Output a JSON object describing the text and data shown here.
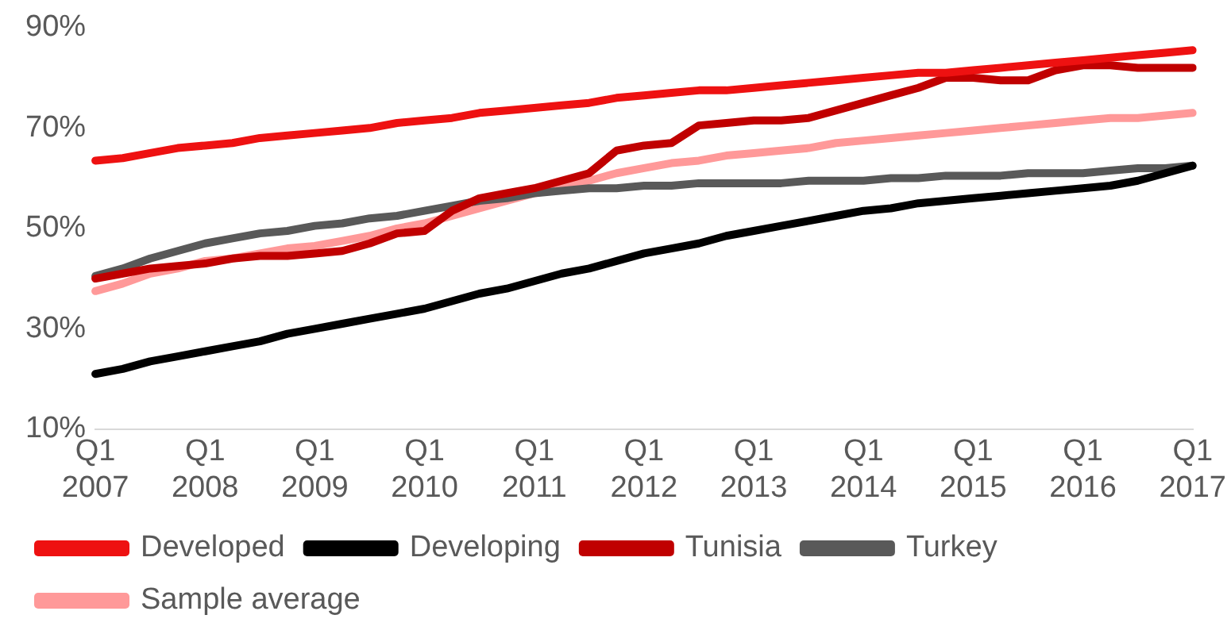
{
  "chart_data": {
    "type": "line",
    "categories": [
      "Q1 2007",
      null,
      null,
      null,
      "Q1 2008",
      null,
      null,
      null,
      "Q1 2009",
      null,
      null,
      null,
      "Q1 2010",
      null,
      null,
      null,
      "Q1 2011",
      null,
      null,
      null,
      "Q1 2012",
      null,
      null,
      null,
      "Q1 2013",
      null,
      null,
      null,
      "Q1 2014",
      null,
      null,
      null,
      "Q1 2015",
      null,
      null,
      null,
      "Q1 2016",
      null,
      null,
      null,
      "Q1 2017"
    ],
    "ylim": [
      10,
      90
    ],
    "yticks": [
      {
        "value": 10,
        "label": "10%"
      },
      {
        "value": 30,
        "label": "30%"
      },
      {
        "value": 50,
        "label": "50%"
      },
      {
        "value": 70,
        "label": "70%"
      },
      {
        "value": 90,
        "label": "90%"
      }
    ],
    "grid": false,
    "legend": "bottom",
    "marker": "none",
    "line_style": "solid",
    "series": [
      {
        "name": "Developed",
        "color": "#ee1111",
        "values": [
          63.5,
          64,
          65,
          66,
          66.5,
          67,
          68,
          68.5,
          69,
          69.5,
          70,
          71,
          71.5,
          72,
          73,
          73.5,
          74,
          74.5,
          75,
          76,
          76.5,
          77,
          77.5,
          77.5,
          78,
          78.5,
          79,
          79.5,
          80,
          80.5,
          81,
          81,
          81.5,
          82,
          82.5,
          83,
          83.5,
          84,
          84.5,
          85,
          85.5
        ]
      },
      {
        "name": "Developing",
        "color": "#000000",
        "values": [
          21,
          22,
          23.5,
          24.5,
          25.5,
          26.5,
          27.5,
          29,
          30,
          31,
          32,
          33,
          34,
          35.5,
          37,
          38,
          39.5,
          41,
          42,
          43.5,
          45,
          46,
          47,
          48.5,
          49.5,
          50.5,
          51.5,
          52.5,
          53.5,
          54,
          55,
          55.5,
          56,
          56.5,
          57,
          57.5,
          58,
          58.5,
          59.5,
          61,
          62.5
        ]
      },
      {
        "name": "Tunisia",
        "color": "#c00000",
        "values": [
          40,
          41,
          42,
          42.5,
          43,
          44,
          44.5,
          44.5,
          45,
          45.5,
          47,
          49,
          49.5,
          53.5,
          56,
          57,
          58,
          59.5,
          61,
          65.5,
          66.5,
          67,
          70.5,
          71,
          71.5,
          71.5,
          72,
          73.5,
          75,
          76.5,
          78,
          80,
          80,
          79.5,
          79.5,
          81.5,
          82.5,
          82.5,
          82,
          82,
          82
        ]
      },
      {
        "name": "Turkey",
        "color": "#595959",
        "values": [
          40.5,
          42,
          44,
          45.5,
          47,
          48,
          49,
          49.5,
          50.5,
          51,
          52,
          52.5,
          53.5,
          54.5,
          55.5,
          56,
          57,
          57.5,
          58,
          58,
          58.5,
          58.5,
          59,
          59,
          59,
          59,
          59.5,
          59.5,
          59.5,
          60,
          60,
          60.5,
          60.5,
          60.5,
          61,
          61,
          61,
          61.5,
          62,
          62,
          62.5
        ]
      },
      {
        "name": "Sample average",
        "color": "#ff9999",
        "values": [
          37.5,
          39,
          41,
          42,
          43.5,
          44,
          45,
          46,
          46.5,
          47.5,
          48.5,
          50,
          51,
          52.5,
          54,
          55.5,
          57,
          58,
          59.5,
          61,
          62,
          63,
          63.5,
          64.5,
          65,
          65.5,
          66,
          67,
          67.5,
          68,
          68.5,
          69,
          69.5,
          70,
          70.5,
          71,
          71.5,
          72,
          72,
          72.5,
          73
        ]
      }
    ]
  }
}
